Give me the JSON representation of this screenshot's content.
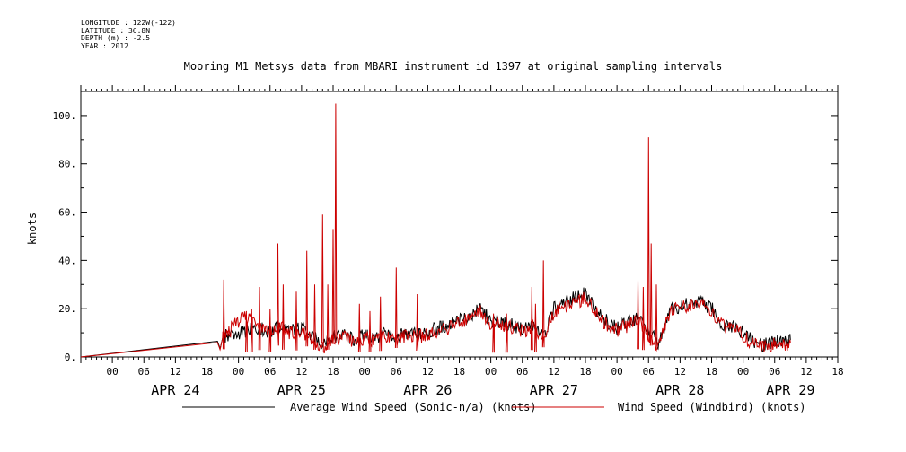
{
  "metadata": {
    "longitude": "LONGITUDE : 122W(-122)",
    "latitude": "LATITUDE : 36.8N",
    "depth": "DEPTH (m) : -2.5",
    "year": "YEAR : 2012"
  },
  "chart_data": {
    "type": "line",
    "title": "Mooring M1 Metsys data from MBARI instrument id 1397 at original sampling intervals",
    "ylabel": "knots",
    "ylim": [
      0,
      110
    ],
    "y_ticks": [
      0,
      20,
      40,
      60,
      80,
      100
    ],
    "y_tick_labels": [
      "0.",
      "20.",
      "40.",
      "60.",
      "80.",
      "100."
    ],
    "x_unit": "hours from APR 24 00:00 (2012)",
    "xlim": [
      -6,
      138
    ],
    "x_ticks": [
      0,
      6,
      12,
      18,
      24,
      30,
      36,
      42,
      48,
      54,
      60,
      66,
      72,
      78,
      84,
      90,
      96,
      102,
      108,
      114,
      120,
      126,
      132,
      138
    ],
    "x_tick_labels": [
      "00",
      "06",
      "12",
      "18",
      "00",
      "06",
      "12",
      "18",
      "00",
      "06",
      "12",
      "18",
      "00",
      "06",
      "12",
      "18",
      "00",
      "06",
      "12",
      "18",
      "00",
      "06",
      "12",
      "18"
    ],
    "day_labels": [
      {
        "x": 12,
        "label": "APR 24"
      },
      {
        "x": 36,
        "label": "APR 25"
      },
      {
        "x": 60,
        "label": "APR 26"
      },
      {
        "x": 84,
        "label": "APR 27"
      },
      {
        "x": 108,
        "label": "APR 28"
      },
      {
        "x": 129,
        "label": "APR 29"
      }
    ],
    "series": [
      {
        "name": "Average Wind Speed (Sonic-n/a) (knots)",
        "color": "#000000",
        "base": [
          [
            -6,
            0
          ],
          [
            20,
            6.5
          ],
          [
            20.5,
            3.5
          ],
          [
            21,
            8
          ],
          [
            22,
            9
          ],
          [
            24,
            10
          ],
          [
            26,
            11
          ],
          [
            28,
            12
          ],
          [
            30,
            10
          ],
          [
            32,
            13
          ],
          [
            34,
            11
          ],
          [
            36,
            12
          ],
          [
            38,
            8
          ],
          [
            40,
            6
          ],
          [
            42,
            8
          ],
          [
            44,
            9
          ],
          [
            46,
            7
          ],
          [
            48,
            9
          ],
          [
            50,
            8
          ],
          [
            52,
            10
          ],
          [
            54,
            8
          ],
          [
            56,
            10
          ],
          [
            58,
            9
          ],
          [
            60,
            10
          ],
          [
            62,
            12
          ],
          [
            64,
            13
          ],
          [
            66,
            15
          ],
          [
            68,
            17
          ],
          [
            70,
            20
          ],
          [
            72,
            15
          ],
          [
            74,
            14
          ],
          [
            76,
            13
          ],
          [
            78,
            12
          ],
          [
            80,
            13
          ],
          [
            82,
            8
          ],
          [
            84,
            20
          ],
          [
            86,
            22
          ],
          [
            88,
            25
          ],
          [
            90,
            26
          ],
          [
            92,
            20
          ],
          [
            94,
            15
          ],
          [
            96,
            12
          ],
          [
            98,
            14
          ],
          [
            100,
            17
          ],
          [
            102,
            10
          ],
          [
            104,
            6
          ],
          [
            106,
            20
          ],
          [
            108,
            21
          ],
          [
            110,
            22
          ],
          [
            112,
            23
          ],
          [
            114,
            20
          ],
          [
            116,
            14
          ],
          [
            118,
            13
          ],
          [
            120,
            10
          ],
          [
            122,
            6
          ],
          [
            124,
            5
          ],
          [
            126,
            7
          ],
          [
            128,
            6
          ],
          [
            129,
            7
          ]
        ],
        "spikes": []
      },
      {
        "name": "Wind Speed (Windbird) (knots)",
        "color": "#cc0000",
        "base": [
          [
            -6,
            0
          ],
          [
            20,
            6
          ],
          [
            20.5,
            3
          ],
          [
            21,
            8
          ],
          [
            22,
            10
          ],
          [
            24,
            15
          ],
          [
            26,
            17
          ],
          [
            28,
            14
          ],
          [
            30,
            10
          ],
          [
            32,
            12
          ],
          [
            34,
            10
          ],
          [
            36,
            11
          ],
          [
            38,
            6
          ],
          [
            40,
            4
          ],
          [
            42,
            7
          ],
          [
            44,
            8
          ],
          [
            46,
            6
          ],
          [
            48,
            8
          ],
          [
            50,
            7
          ],
          [
            52,
            9
          ],
          [
            54,
            7
          ],
          [
            56,
            9
          ],
          [
            58,
            8
          ],
          [
            60,
            9
          ],
          [
            62,
            11
          ],
          [
            64,
            12
          ],
          [
            66,
            14
          ],
          [
            68,
            16
          ],
          [
            70,
            19
          ],
          [
            72,
            14
          ],
          [
            74,
            13
          ],
          [
            76,
            12
          ],
          [
            78,
            11
          ],
          [
            80,
            12
          ],
          [
            82,
            7
          ],
          [
            84,
            19
          ],
          [
            86,
            21
          ],
          [
            88,
            23
          ],
          [
            90,
            24
          ],
          [
            92,
            19
          ],
          [
            94,
            13
          ],
          [
            96,
            11
          ],
          [
            98,
            13
          ],
          [
            100,
            16
          ],
          [
            102,
            8
          ],
          [
            104,
            4
          ],
          [
            106,
            19
          ],
          [
            108,
            20
          ],
          [
            110,
            21
          ],
          [
            112,
            22
          ],
          [
            114,
            19
          ],
          [
            116,
            13
          ],
          [
            118,
            12
          ],
          [
            120,
            9
          ],
          [
            122,
            5
          ],
          [
            124,
            4
          ],
          [
            126,
            6
          ],
          [
            128,
            5
          ],
          [
            129,
            6
          ]
        ],
        "spikes": [
          [
            21.2,
            32
          ],
          [
            25.5,
            19
          ],
          [
            26.5,
            20
          ],
          [
            28,
            29
          ],
          [
            30,
            20
          ],
          [
            31.5,
            47
          ],
          [
            32.5,
            30
          ],
          [
            35,
            27
          ],
          [
            37,
            44
          ],
          [
            38.5,
            30
          ],
          [
            40,
            59
          ],
          [
            41,
            30
          ],
          [
            42,
            53
          ],
          [
            42.5,
            105
          ],
          [
            47,
            22
          ],
          [
            49,
            19
          ],
          [
            51,
            25
          ],
          [
            54,
            37
          ],
          [
            58,
            26
          ],
          [
            72.5,
            18
          ],
          [
            75,
            18
          ],
          [
            79.8,
            29
          ],
          [
            80.5,
            22
          ],
          [
            82,
            40
          ],
          [
            100,
            32
          ],
          [
            101,
            29
          ],
          [
            102,
            91
          ],
          [
            102.5,
            47
          ],
          [
            103.5,
            30
          ]
        ]
      }
    ],
    "legend": {
      "placement": "bottom",
      "entries": [
        {
          "label": "Average Wind Speed (Sonic-n/a) (knots)",
          "color": "#000000"
        },
        {
          "label": "Wind Speed (Windbird) (knots)",
          "color": "#cc0000"
        }
      ]
    },
    "grid": false
  }
}
